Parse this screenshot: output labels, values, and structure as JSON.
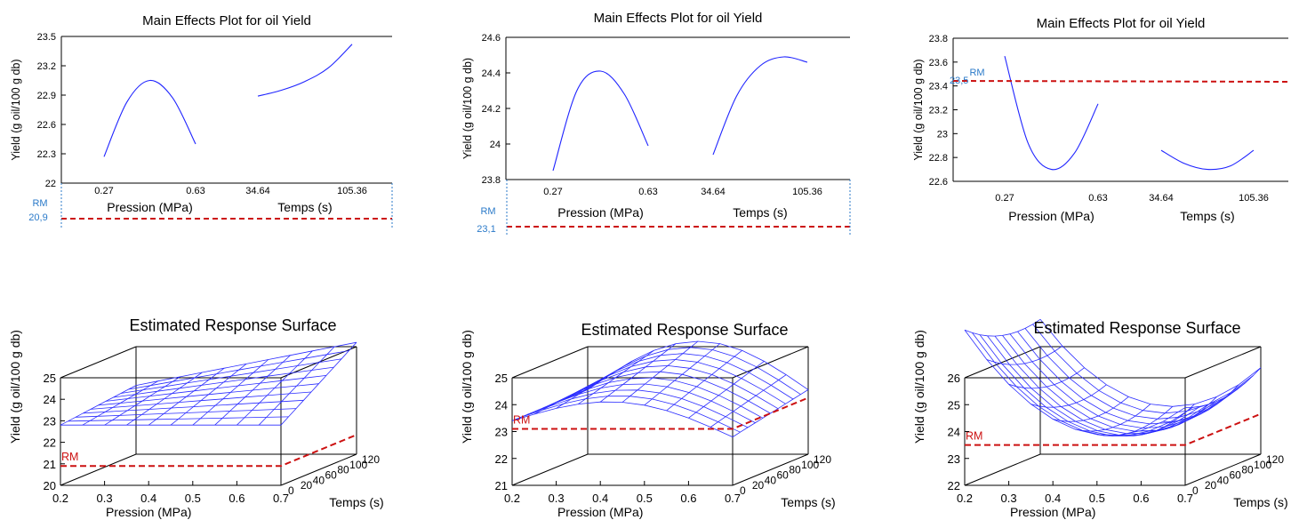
{
  "colors": {
    "curve": "#1f24ff",
    "reference": "#cc1111",
    "rm_label": "#2b7ac9",
    "axis": "#000000",
    "mesh": "#2a2cff"
  },
  "common": {
    "main_title": "Main Effects Plot for oil Yield",
    "surface_title": "Estimated Response Surface",
    "ylabel": "Yield (g oil/100 g db)",
    "x_label_pression": "Pression (MPa)",
    "x_label_temps": "Temps (s)",
    "rm": "RM",
    "pression_ticks": [
      "0.27",
      "0.63"
    ],
    "temps_ticks": [
      "34.64",
      "105.36"
    ]
  },
  "chart_data": [
    {
      "type": "line",
      "title": "Main Effects Plot for oil Yield",
      "ylabel": "Yield (g oil/100 g db)",
      "ylim": [
        22,
        23.5
      ],
      "yticks": [
        "22",
        "22.3",
        "22.6",
        "22.9",
        "23.2",
        "23.5"
      ],
      "series": [
        {
          "x": [
            0.27,
            0.36,
            0.45,
            0.54,
            0.63
          ],
          "y": [
            22.27,
            22.83,
            23.05,
            22.87,
            22.4
          ]
        },
        {
          "x": [
            34.64,
            52.3,
            70.0,
            87.7,
            105.36
          ],
          "y": [
            22.89,
            22.95,
            23.04,
            23.18,
            23.42
          ]
        }
      ],
      "reference": {
        "label": "RM",
        "value_label": "20,9",
        "value": 20.9
      }
    },
    {
      "type": "line",
      "title": "Main Effects Plot for oil Yield",
      "ylabel": "Yield (g oil/100 g db)",
      "ylim": [
        23.8,
        24.6
      ],
      "yticks": [
        "23.8",
        "24",
        "24.2",
        "24.4",
        "24.6"
      ],
      "series": [
        {
          "x": [
            0.27,
            0.36,
            0.45,
            0.54,
            0.63
          ],
          "y": [
            23.85,
            24.3,
            24.41,
            24.28,
            23.99
          ]
        },
        {
          "x": [
            34.64,
            52.3,
            70.0,
            87.7,
            105.36
          ],
          "y": [
            23.94,
            24.27,
            24.44,
            24.49,
            24.46
          ]
        }
      ],
      "reference": {
        "label": "RM",
        "value_label": "23,1",
        "value": 23.1
      }
    },
    {
      "type": "line",
      "title": "Main Effects Plot for oil Yield",
      "ylabel": "Yield (g oil/100 g db)",
      "ylim": [
        22.6,
        23.8
      ],
      "yticks": [
        "22.6",
        "22.8",
        "23",
        "23.2",
        "23.4",
        "23.6",
        "23.8"
      ],
      "series": [
        {
          "x": [
            0.27,
            0.36,
            0.45,
            0.54,
            0.63
          ],
          "y": [
            23.65,
            22.92,
            22.7,
            22.84,
            23.25
          ]
        },
        {
          "x": [
            34.64,
            52.3,
            70.0,
            87.7,
            105.36
          ],
          "y": [
            22.86,
            22.75,
            22.7,
            22.73,
            22.86
          ]
        }
      ],
      "reference": {
        "label": "RM",
        "value_label": "23,5",
        "value": 23.5
      }
    },
    {
      "type": "surface",
      "title": "Estimated Response Surface",
      "zlabel": "Yield (g oil/100 g db)",
      "xlabel": "Pression (MPa)",
      "ylabel": "Temps (s)",
      "xticks": [
        "0.2",
        "0.3",
        "0.4",
        "0.5",
        "0.6",
        "0.7"
      ],
      "yticks": [
        "0",
        "20",
        "40",
        "60",
        "80",
        "100",
        "120"
      ],
      "zticks": [
        "20",
        "21",
        "22",
        "23",
        "24",
        "25"
      ],
      "zlim": [
        20,
        25
      ],
      "reference": {
        "label": "RM",
        "value": 20.9
      }
    },
    {
      "type": "surface",
      "title": "Estimated Response Surface",
      "zlabel": "Yield (g oil/100 g db)",
      "xlabel": "Pression (MPa)",
      "ylabel": "Temps (s)",
      "xticks": [
        "0.2",
        "0.3",
        "0.4",
        "0.5",
        "0.6",
        "0.7"
      ],
      "yticks": [
        "0",
        "20",
        "40",
        "60",
        "80",
        "100",
        "120"
      ],
      "zticks": [
        "21",
        "22",
        "23",
        "24",
        "25"
      ],
      "zlim": [
        21,
        25
      ],
      "reference": {
        "label": "RM",
        "value": 23.1
      }
    },
    {
      "type": "surface",
      "title": "Estimated Response Surface",
      "zlabel": "Yield (g oil/100 g db)",
      "xlabel": "Pression (MPa)",
      "ylabel": "Temps (s)",
      "xticks": [
        "0.2",
        "0.3",
        "0.4",
        "0.5",
        "0.6",
        "0.7"
      ],
      "yticks": [
        "0",
        "20",
        "40",
        "60",
        "80",
        "100",
        "120"
      ],
      "zticks": [
        "22",
        "23",
        "24",
        "25",
        "26"
      ],
      "zlim": [
        22,
        26
      ],
      "reference": {
        "label": "RM",
        "value": 23.5
      }
    }
  ]
}
